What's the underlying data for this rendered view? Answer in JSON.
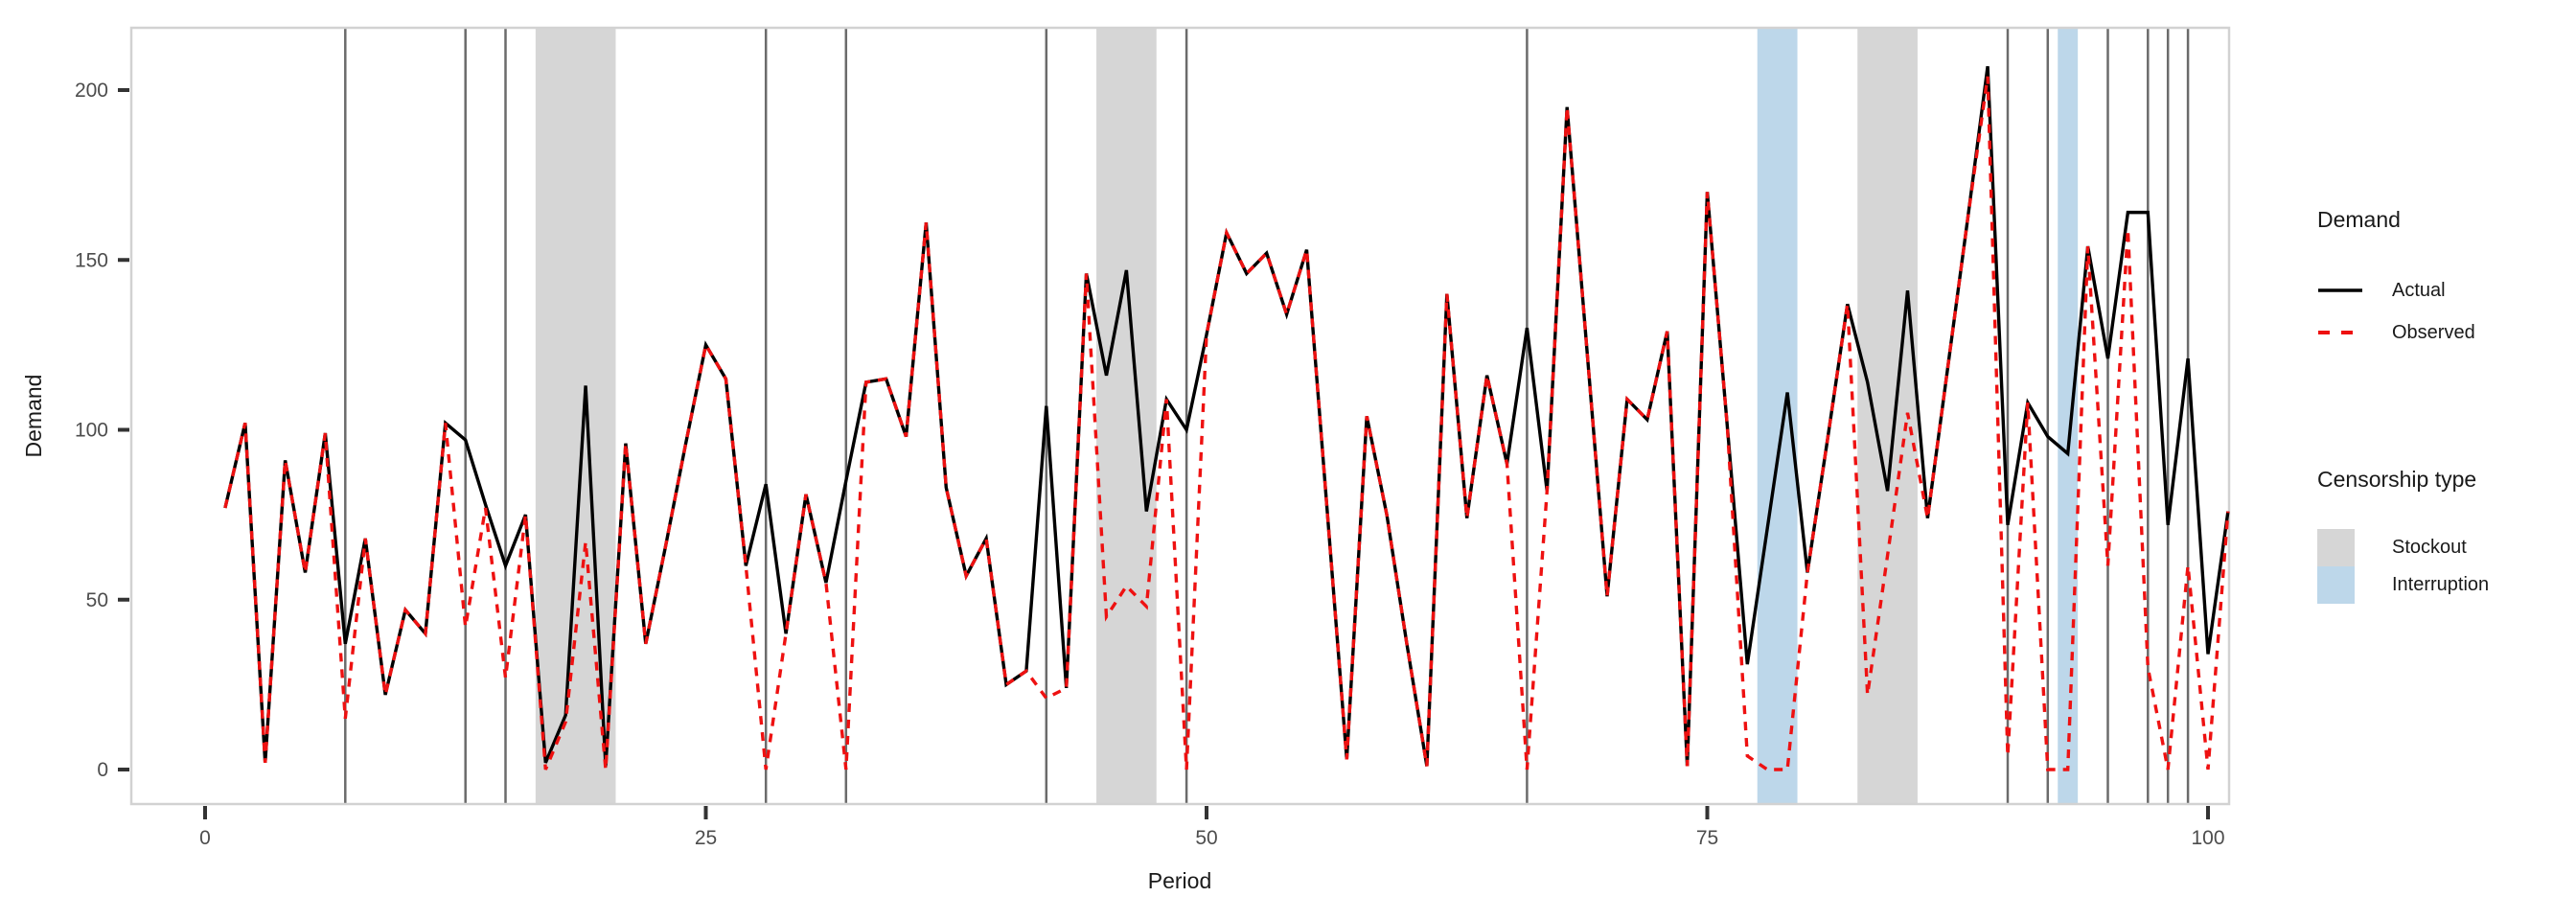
{
  "axes": {
    "x_title": "Period",
    "y_title": "Demand",
    "x_ticks": {
      "values": [
        0,
        25,
        50,
        75,
        100
      ],
      "labels": [
        "0",
        "25",
        "50",
        "75",
        "100"
      ]
    },
    "y_ticks": {
      "values": [
        0,
        50,
        100,
        150,
        200
      ],
      "labels": [
        "0",
        "50",
        "100",
        "150",
        "200"
      ]
    }
  },
  "legend": {
    "demand_title": "Demand",
    "actual_label": "Actual",
    "observed_label": "Observed",
    "censorship_title": "Censorship type",
    "stockout_label": "Stockout",
    "interruption_label": "Interruption"
  },
  "chart_data": {
    "type": "line",
    "title": "",
    "xlabel": "Period",
    "ylabel": "Demand",
    "xlim": [
      -3.7,
      101.1
    ],
    "ylim": [
      -10,
      218
    ],
    "grid": false,
    "legend_position": "right",
    "x_start_period": 1,
    "series": [
      {
        "name": "Actual",
        "style": "solid",
        "color": "#000000",
        "values": [
          77,
          102,
          2,
          91,
          58,
          99,
          37,
          68,
          22,
          47,
          40,
          102,
          97,
          78,
          60,
          75,
          2,
          16,
          113,
          1,
          96,
          37,
          66,
          96,
          125,
          115,
          60,
          84,
          40,
          81,
          55,
          85,
          114,
          115,
          98,
          161,
          83,
          57,
          68,
          25,
          29,
          107,
          24,
          146,
          116,
          147,
          76,
          109,
          100,
          128,
          158,
          146,
          152,
          134,
          153,
          78,
          3,
          104,
          75,
          37,
          1,
          140,
          74,
          116,
          90,
          130,
          82,
          195,
          123,
          51,
          109,
          103,
          129,
          1,
          170,
          101,
          31,
          71,
          111,
          58,
          97,
          137,
          114,
          82,
          141,
          74,
          118,
          162,
          207,
          72,
          108,
          98,
          93,
          154,
          121,
          164,
          164,
          72,
          121,
          34,
          76
        ]
      },
      {
        "name": "Observed",
        "style": "dashed",
        "color": "#ee1111",
        "values": [
          77,
          102,
          2,
          91,
          58,
          99,
          15,
          68,
          22,
          47,
          40,
          102,
          42,
          77,
          27,
          75,
          0,
          14,
          67,
          0,
          96,
          37,
          66,
          96,
          125,
          115,
          60,
          0,
          40,
          81,
          55,
          0,
          114,
          115,
          98,
          161,
          83,
          57,
          68,
          25,
          29,
          21,
          24,
          146,
          45,
          54,
          48,
          109,
          0,
          128,
          158,
          146,
          152,
          134,
          153,
          78,
          3,
          104,
          75,
          37,
          1,
          140,
          74,
          116,
          90,
          0,
          82,
          195,
          123,
          51,
          109,
          103,
          129,
          1,
          170,
          101,
          4,
          0,
          0,
          58,
          97,
          137,
          22,
          63,
          105,
          74,
          118,
          162,
          204,
          4,
          108,
          0,
          0,
          154,
          60,
          159,
          30,
          0,
          60,
          0,
          76
        ]
      }
    ],
    "censor_regions": {
      "stockout": [
        [
          16.5,
          20.5
        ],
        [
          44.5,
          47.5
        ],
        [
          82.5,
          85.5
        ]
      ],
      "interruption": [
        [
          77.5,
          79.5
        ],
        [
          92.5,
          93.5
        ]
      ]
    },
    "censor_lines": [
      7,
      13,
      15,
      28,
      32,
      42,
      49,
      66,
      90,
      92,
      95,
      97,
      98,
      99
    ],
    "colors": {
      "stockout_fill": "#d6d6d6",
      "interruption_fill": "#bdd7ea",
      "censor_line": "#6b6b6b",
      "panel_border": "#d2d2d2",
      "tick": "#333333",
      "tick_label": "#4d4d4d"
    }
  }
}
